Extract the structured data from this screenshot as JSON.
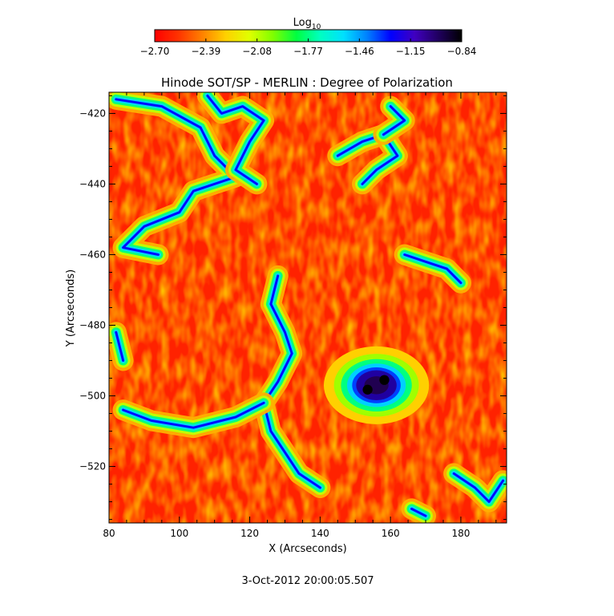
{
  "chart_data": {
    "type": "heatmap",
    "title": "Hinode SOT/SP - MERLIN : Degree of Polarization",
    "xlabel": "X (Arcseconds)",
    "ylabel": "Y (Arcseconds)",
    "xlim": [
      80,
      193
    ],
    "ylim": [
      -536,
      -414
    ],
    "x_ticks": [
      80,
      100,
      120,
      140,
      160,
      180
    ],
    "y_ticks": [
      -420,
      -440,
      -460,
      -480,
      -500,
      -520
    ],
    "x_tick_labels": [
      "80",
      "100",
      "120",
      "140",
      "160",
      "180"
    ],
    "y_tick_labels": [
      "−420",
      "−440",
      "−460",
      "−480",
      "−500",
      "−520"
    ],
    "grid": false,
    "colorbar": {
      "label_base": "Log",
      "label_sub": "10",
      "min": -2.7,
      "max": -0.84,
      "tick_values": [
        -2.7,
        -2.39,
        -2.08,
        -1.77,
        -1.46,
        -1.15,
        -0.84
      ],
      "tick_labels": [
        "−2.70",
        "−2.39",
        "−2.08",
        "−1.77",
        "−1.46",
        "−1.15",
        "−0.84"
      ],
      "colormap": [
        "#ff0000",
        "#ff3300",
        "#ff8000",
        "#ffd000",
        "#e0ff00",
        "#80ff00",
        "#00ff40",
        "#00ffc0",
        "#00e0ff",
        "#0080ff",
        "#0000ff",
        "#4000c0",
        "#200060",
        "#000000"
      ]
    },
    "features": [
      {
        "kind": "sunspot",
        "x": 156,
        "y": -497,
        "r": 5
      },
      {
        "kind": "network",
        "points": [
          [
            82,
            -416
          ],
          [
            95,
            -418
          ],
          [
            106,
            -424
          ],
          [
            110,
            -432
          ],
          [
            116,
            -438
          ],
          [
            104,
            -442
          ],
          [
            100,
            -448
          ],
          [
            90,
            -452
          ],
          [
            84,
            -458
          ],
          [
            94,
            -460
          ]
        ]
      },
      {
        "kind": "network",
        "points": [
          [
            108,
            -415
          ],
          [
            112,
            -420
          ],
          [
            118,
            -418
          ],
          [
            124,
            -422
          ],
          [
            120,
            -428
          ],
          [
            116,
            -436
          ],
          [
            122,
            -440
          ]
        ]
      },
      {
        "kind": "network",
        "points": [
          [
            128,
            -466
          ],
          [
            126,
            -474
          ],
          [
            130,
            -482
          ],
          [
            132,
            -488
          ],
          [
            128,
            -496
          ],
          [
            124,
            -502
          ],
          [
            126,
            -510
          ],
          [
            130,
            -516
          ],
          [
            134,
            -522
          ],
          [
            140,
            -526
          ]
        ]
      },
      {
        "kind": "network",
        "points": [
          [
            84,
            -504
          ],
          [
            92,
            -507
          ],
          [
            104,
            -509
          ],
          [
            116,
            -506
          ],
          [
            124,
            -502
          ]
        ]
      },
      {
        "kind": "network",
        "points": [
          [
            145,
            -432
          ],
          [
            152,
            -428
          ],
          [
            158,
            -426
          ],
          [
            162,
            -432
          ],
          [
            156,
            -436
          ],
          [
            152,
            -440
          ]
        ]
      },
      {
        "kind": "network",
        "points": [
          [
            160,
            -418
          ],
          [
            164,
            -422
          ],
          [
            158,
            -426
          ]
        ]
      },
      {
        "kind": "network",
        "points": [
          [
            164,
            -460
          ],
          [
            170,
            -462
          ],
          [
            176,
            -464
          ],
          [
            180,
            -468
          ]
        ]
      },
      {
        "kind": "network",
        "points": [
          [
            82,
            -482
          ],
          [
            84,
            -490
          ]
        ]
      },
      {
        "kind": "network",
        "points": [
          [
            178,
            -522
          ],
          [
            184,
            -526
          ],
          [
            188,
            -530
          ],
          [
            192,
            -524
          ]
        ]
      },
      {
        "kind": "network",
        "points": [
          [
            166,
            -532
          ],
          [
            170,
            -534
          ]
        ]
      }
    ]
  },
  "timestamp": "3-Oct-2012 20:00:05.507"
}
